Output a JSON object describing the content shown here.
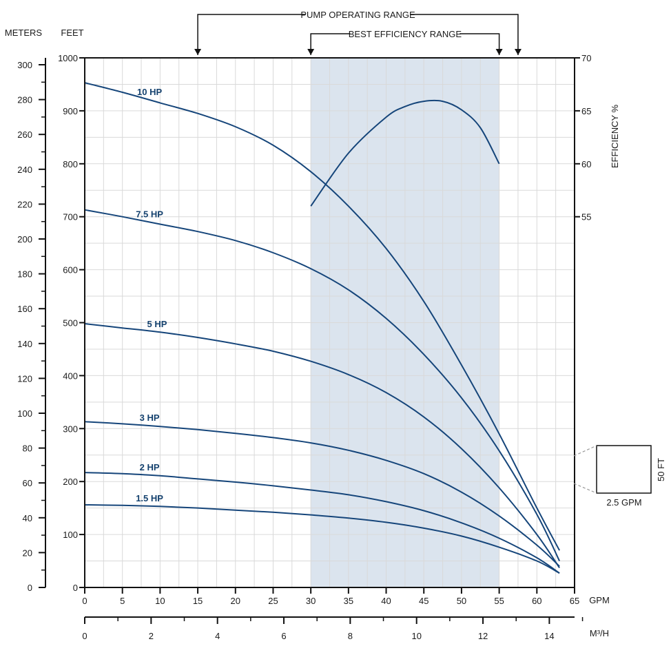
{
  "chart_data": {
    "type": "line",
    "title": "",
    "units": {
      "meters": "METERS",
      "feet": "FEET",
      "gpm": "GPM",
      "m3h": "M³/H",
      "efficiency": "EFFICIENCY %"
    },
    "ranges": {
      "pump_operating": {
        "label": "PUMP OPERATING RANGE",
        "from_gpm": 15,
        "to_gpm": 57.5
      },
      "best_efficiency": {
        "label": "BEST EFFICIENCY RANGE",
        "from_gpm": 30,
        "to_gpm": 55
      }
    },
    "x_gpm": {
      "min": 0,
      "max": 65,
      "ticks": [
        0,
        5,
        10,
        15,
        20,
        25,
        30,
        35,
        40,
        45,
        50,
        55,
        60,
        65
      ]
    },
    "x_m3h": {
      "min": 0,
      "max": 14.76,
      "ticks": [
        0,
        2,
        4,
        6,
        8,
        10,
        12,
        14
      ]
    },
    "y_feet": {
      "min": 0,
      "max": 1000,
      "ticks": [
        0,
        100,
        200,
        300,
        400,
        500,
        600,
        700,
        800,
        900,
        1000
      ]
    },
    "y_meters": {
      "min": 0,
      "max": 300,
      "ticks": [
        0,
        20,
        40,
        60,
        80,
        100,
        120,
        140,
        160,
        180,
        200,
        220,
        240,
        260,
        280,
        300
      ]
    },
    "y_efficiency": {
      "ticks": [
        55,
        60,
        65,
        70
      ],
      "ref_gpm": 0,
      "feet_at_55": 700,
      "feet_at_70": 1000
    },
    "series": [
      {
        "name": "10 HP",
        "label_gpm": 7.2,
        "x": [
          0,
          5,
          10,
          15,
          20,
          25,
          30,
          35,
          40,
          45,
          50,
          55,
          60,
          63
        ],
        "y": [
          953,
          935,
          915,
          895,
          870,
          835,
          785,
          720,
          640,
          540,
          420,
          290,
          150,
          70
        ]
      },
      {
        "name": "7.5 HP",
        "label_gpm": 7.2,
        "x": [
          0,
          5,
          10,
          15,
          20,
          25,
          30,
          35,
          40,
          45,
          50,
          55,
          60,
          63
        ],
        "y": [
          713,
          700,
          686,
          672,
          655,
          632,
          602,
          562,
          508,
          440,
          358,
          258,
          138,
          50
        ]
      },
      {
        "name": "5 HP",
        "label_gpm": 8.2,
        "x": [
          0,
          5,
          10,
          15,
          20,
          25,
          30,
          35,
          40,
          45,
          50,
          55,
          60,
          63
        ],
        "y": [
          498,
          490,
          482,
          472,
          460,
          446,
          427,
          402,
          368,
          322,
          262,
          188,
          100,
          37
        ]
      },
      {
        "name": "3 HP",
        "label_gpm": 7.2,
        "x": [
          0,
          5,
          10,
          15,
          20,
          25,
          30,
          35,
          40,
          45,
          50,
          55,
          60,
          63
        ],
        "y": [
          313,
          309,
          304,
          298,
          291,
          283,
          273,
          259,
          240,
          215,
          180,
          135,
          80,
          40
        ]
      },
      {
        "name": "2 HP",
        "label_gpm": 7.2,
        "x": [
          0,
          5,
          10,
          15,
          20,
          25,
          30,
          35,
          40,
          45,
          50,
          55,
          60,
          63
        ],
        "y": [
          217,
          215,
          211,
          205,
          199,
          192,
          184,
          175,
          162,
          145,
          122,
          93,
          56,
          27
        ]
      },
      {
        "name": "1.5 HP",
        "label_gpm": 7.2,
        "x": [
          0,
          5,
          10,
          15,
          20,
          25,
          30,
          35,
          40,
          45,
          50,
          55,
          60,
          63
        ],
        "y": [
          156,
          155,
          153,
          150,
          146,
          142,
          137,
          131,
          123,
          112,
          97,
          76,
          50,
          27
        ]
      },
      {
        "name": "Efficiency",
        "axis": "efficiency",
        "x": [
          30,
          35,
          40,
          42.5,
          45,
          47.5,
          50,
          52.5,
          55
        ],
        "y": [
          56.0,
          61.0,
          64.4,
          65.4,
          65.9,
          65.9,
          65.1,
          63.4,
          60.0
        ]
      }
    ],
    "scale_box": {
      "height_label": "50 FT",
      "width_label": "2.5 GPM",
      "height_feet": 50,
      "width_gpm": 2.5
    }
  }
}
